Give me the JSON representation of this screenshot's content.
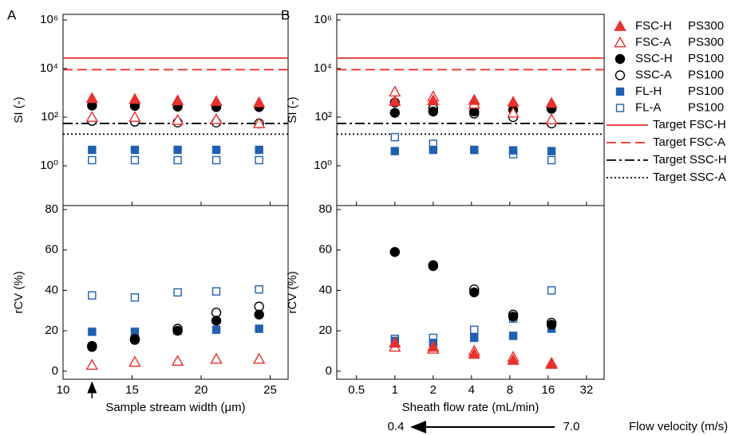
{
  "chart_data": [
    {
      "type": "scatter",
      "panel": "A",
      "ylabel": "SI (-)",
      "yscale": "log",
      "x": [
        12.1,
        15.2,
        18.3,
        21.1,
        24.2
      ],
      "xlim": [
        10,
        26.3
      ],
      "ylim": [
        0.023,
        1700000
      ],
      "yticks": [
        {
          "value": 1000000,
          "label": "10⁶"
        },
        {
          "value": 10000,
          "label": "10⁴"
        },
        {
          "value": 100,
          "label": "10²"
        },
        {
          "value": 1,
          "label": "10⁰"
        }
      ],
      "series": [
        {
          "name": "FSC-H",
          "particle": "PS300",
          "color": "#e8312d",
          "marker": "triangle",
          "filled": true,
          "values": [
            600,
            550,
            480,
            450,
            400
          ]
        },
        {
          "name": "FSC-A",
          "particle": "PS300",
          "color": "#e8312d",
          "marker": "triangle",
          "filled": false,
          "values": [
            100,
            100,
            75,
            80,
            55
          ]
        },
        {
          "name": "SSC-H",
          "particle": "PS100",
          "color": "#000000",
          "marker": "circle",
          "filled": true,
          "values": [
            300,
            290,
            270,
            260,
            260
          ]
        },
        {
          "name": "SSC-A",
          "particle": "PS100",
          "color": "#000000",
          "marker": "circle",
          "filled": false,
          "values": [
            70,
            65,
            60,
            60,
            55
          ]
        },
        {
          "name": "FL-H",
          "particle": "PS100",
          "color": "#2060b0",
          "marker": "square",
          "filled": true,
          "values": [
            4.5,
            4.5,
            4.5,
            4.5,
            4.5
          ]
        },
        {
          "name": "FL-A",
          "particle": "PS100",
          "color": "#2060b0",
          "marker": "square",
          "filled": false,
          "values": [
            1.7,
            1.7,
            1.7,
            1.7,
            1.7
          ]
        }
      ],
      "reference_lines": [
        {
          "name": "Target FSC-H",
          "value": 27000,
          "color": "#e8312d",
          "dash": "solid"
        },
        {
          "name": "Target FSC-A",
          "value": 9000,
          "color": "#e8312d",
          "dash": "dashed"
        },
        {
          "name": "Target SSC-H",
          "value": 55,
          "color": "#000000",
          "dash": "dashdot"
        },
        {
          "name": "Target SSC-A",
          "value": 20,
          "color": "#000000",
          "dash": "dotted"
        }
      ]
    },
    {
      "type": "scatter",
      "ylabel": "rCV (%)",
      "xlabel": "Sample stream width (μm)",
      "x": [
        12.1,
        15.2,
        18.3,
        21.1,
        24.2
      ],
      "xlim": [
        10,
        26.3
      ],
      "xticks": [
        10,
        15,
        20,
        25
      ],
      "ylim": [
        -4,
        82
      ],
      "yticks": [
        0,
        20,
        40,
        60,
        80
      ],
      "series": [
        {
          "values": [
            null,
            null,
            null,
            null,
            null
          ]
        },
        {
          "values": [
            3,
            4.5,
            5,
            6,
            6
          ]
        },
        {
          "values": [
            12,
            15.5,
            20,
            25,
            28
          ]
        },
        {
          "values": [
            12.5,
            16,
            21,
            29,
            32
          ]
        },
        {
          "values": [
            19.5,
            19.5,
            20,
            20.5,
            21
          ]
        },
        {
          "values": [
            37.5,
            36.5,
            39,
            39.5,
            40.5
          ]
        }
      ]
    },
    {
      "type": "scatter",
      "panel": "B",
      "ylabel": "SI (-)",
      "yscale": "log",
      "xscale": "log",
      "x": [
        1,
        2,
        4.2,
        8.5,
        17
      ],
      "xlim": [
        0.35,
        44
      ],
      "ylim": [
        0.023,
        1700000
      ],
      "yticks": [
        {
          "value": 1000000,
          "label": "10⁶"
        },
        {
          "value": 10000,
          "label": "10⁴"
        },
        {
          "value": 100,
          "label": "10²"
        },
        {
          "value": 1,
          "label": "10⁰"
        }
      ],
      "series": [
        {
          "values": [
            450,
            480,
            500,
            420,
            380
          ]
        },
        {
          "values": [
            1100,
            700,
            350,
            150,
            80
          ]
        },
        {
          "values": [
            150,
            170,
            170,
            200,
            220
          ]
        },
        {
          "values": [
            400,
            230,
            140,
            100,
            55
          ]
        },
        {
          "values": [
            4,
            4.5,
            4.5,
            4.3,
            4
          ]
        },
        {
          "values": [
            15,
            8,
            4.5,
            3,
            1.7
          ]
        }
      ]
    },
    {
      "type": "scatter",
      "ylabel": "rCV (%)",
      "xlabel": "Sheath flow rate (mL/min)",
      "xscale": "log",
      "x": [
        1,
        2,
        4.2,
        8.5,
        17
      ],
      "xlim": [
        0.35,
        44
      ],
      "xticks": [
        0.5,
        1,
        2,
        4,
        8,
        16,
        32
      ],
      "ylim": [
        -4,
        82
      ],
      "yticks": [
        0,
        20,
        40,
        60,
        80
      ],
      "series": [
        {
          "values": [
            14,
            12,
            8.5,
            5.5,
            3.5
          ]
        },
        {
          "values": [
            12,
            11,
            10,
            7,
            4
          ]
        },
        {
          "values": [
            59,
            52,
            39,
            27,
            23
          ]
        },
        {
          "values": [
            59,
            52.5,
            40.5,
            28,
            24
          ]
        },
        {
          "values": [
            15,
            14,
            16.5,
            17.5,
            21
          ]
        },
        {
          "values": [
            16,
            16.5,
            20.5,
            26,
            40
          ]
        }
      ],
      "velocity_axis": {
        "label": "Flow velocity (m/s)",
        "left": "0.4",
        "right": "7.0"
      }
    }
  ]
}
